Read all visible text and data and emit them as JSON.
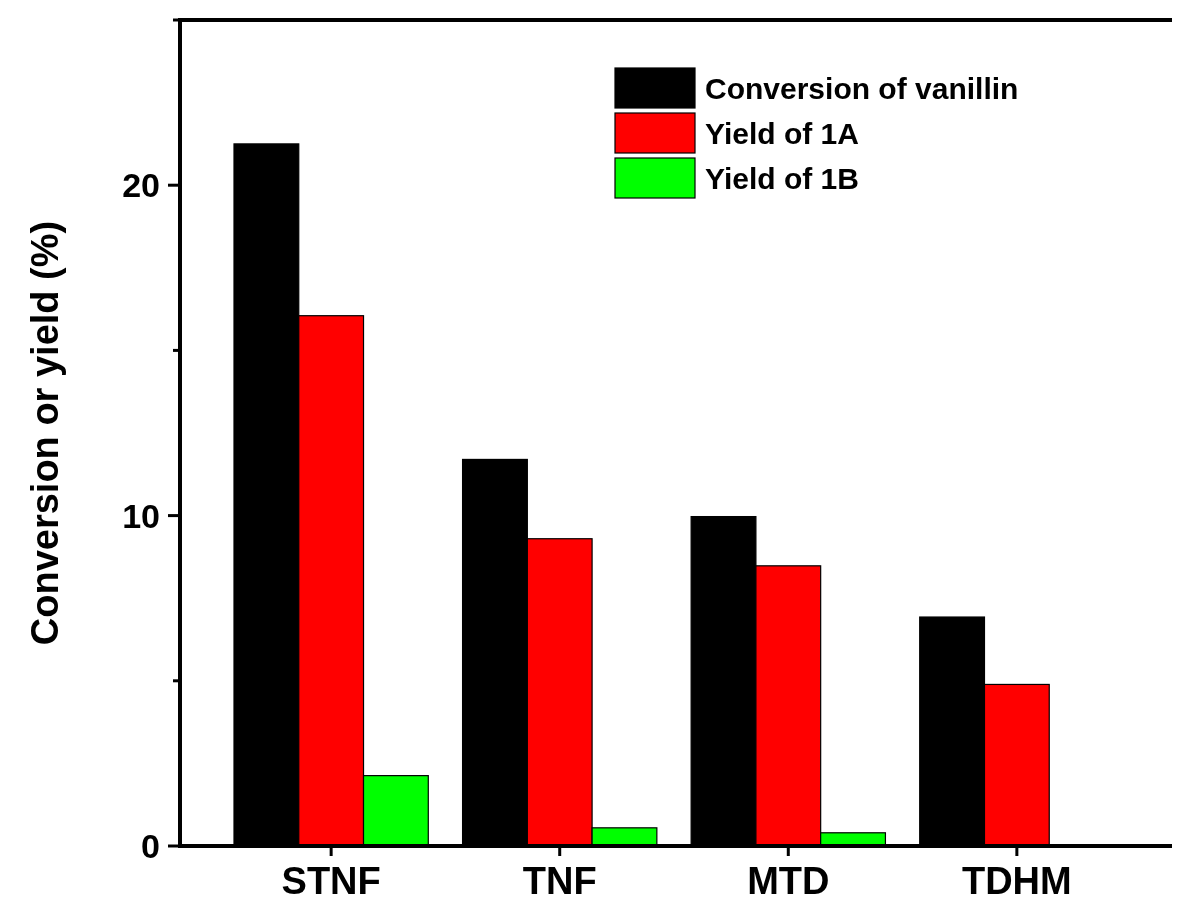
{
  "chart_data": {
    "type": "bar",
    "ylabel": "Conversion or yield (%)",
    "categories": [
      "STNF",
      "TNF",
      "MTD",
      "TDHM"
    ],
    "series": [
      {
        "name": "Conversion of vanillin",
        "color": "#000000",
        "values": [
          21.25,
          11.7,
          9.97,
          6.93
        ]
      },
      {
        "name": "Yield of 1A",
        "color": "#ff0000",
        "values": [
          16.05,
          9.3,
          8.48,
          4.89
        ]
      },
      {
        "name": "Yield of 1B",
        "color": "#00ff00",
        "values": [
          2.13,
          0.55,
          0.4,
          0
        ]
      }
    ],
    "ylim": [
      0,
      25
    ],
    "yticks": [
      0,
      {
        "value": 5,
        "label": null
      },
      10,
      {
        "value": 15,
        "label": null
      },
      20,
      {
        "value": 25,
        "label": null
      }
    ],
    "grid": false,
    "legend": "top right"
  }
}
